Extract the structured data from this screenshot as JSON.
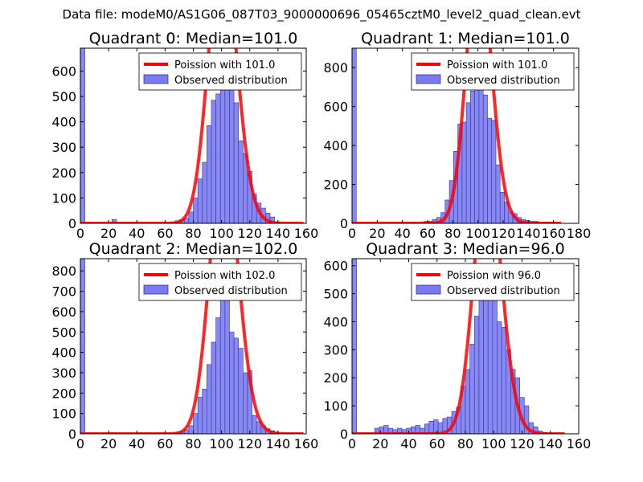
{
  "figure": {
    "suptitle": "Data file: modeM0/AS1G06_087T03_9000000696_05465cztM0_level2_quad_clean.evt",
    "fill_color": "#7b7bf0",
    "fill_edge": "#3535a8",
    "line_color": "#ff0000"
  },
  "chart_data": [
    {
      "type": "bar",
      "title": "Quadrant 0: Median=101.0",
      "xlim": [
        0,
        160
      ],
      "ylim": [
        0,
        690
      ],
      "xticks": [
        0,
        20,
        40,
        60,
        80,
        100,
        120,
        140,
        160
      ],
      "yticks": [
        0,
        100,
        200,
        300,
        400,
        500,
        600
      ],
      "legend": {
        "location": "top-right",
        "line_label": "Poission with 101.0",
        "bar_label": "Observed distribution"
      },
      "bin_width": 3.2,
      "bins": [
        {
          "x": 0,
          "y": 690
        },
        {
          "x": 22.4,
          "y": 15
        },
        {
          "x": 64,
          "y": 5
        },
        {
          "x": 67.2,
          "y": 10
        },
        {
          "x": 70.4,
          "y": 15
        },
        {
          "x": 73.6,
          "y": 20
        },
        {
          "x": 76.8,
          "y": 45
        },
        {
          "x": 80,
          "y": 100
        },
        {
          "x": 83.2,
          "y": 175
        },
        {
          "x": 86.4,
          "y": 240
        },
        {
          "x": 89.6,
          "y": 385
        },
        {
          "x": 92.8,
          "y": 485
        },
        {
          "x": 96,
          "y": 510
        },
        {
          "x": 99.2,
          "y": 665
        },
        {
          "x": 102.4,
          "y": 655
        },
        {
          "x": 105.6,
          "y": 550
        },
        {
          "x": 108.8,
          "y": 475
        },
        {
          "x": 112,
          "y": 325
        },
        {
          "x": 115.2,
          "y": 275
        },
        {
          "x": 118.4,
          "y": 205
        },
        {
          "x": 121.6,
          "y": 115
        },
        {
          "x": 124.8,
          "y": 80
        },
        {
          "x": 128,
          "y": 60
        },
        {
          "x": 131.2,
          "y": 40
        },
        {
          "x": 134.4,
          "y": 25
        },
        {
          "x": 137.6,
          "y": 5
        }
      ],
      "poisson_mean": 101.0,
      "poisson_scale": 27300,
      "poisson_xrange": [
        0,
        158
      ]
    },
    {
      "type": "bar",
      "title": "Quadrant 1: Median=101.0",
      "xlim": [
        0,
        180
      ],
      "ylim": [
        0,
        900
      ],
      "xticks": [
        0,
        20,
        40,
        60,
        80,
        100,
        120,
        140,
        160,
        180
      ],
      "yticks": [
        0,
        200,
        400,
        600,
        800
      ],
      "legend": {
        "location": "top-right",
        "line_label": "Poission with 101.0",
        "bar_label": "Observed distribution"
      },
      "bin_width": 3.36,
      "bins": [
        {
          "x": 0,
          "y": 900
        },
        {
          "x": 47,
          "y": 5
        },
        {
          "x": 57.1,
          "y": 10
        },
        {
          "x": 60.5,
          "y": 10
        },
        {
          "x": 63.8,
          "y": 20
        },
        {
          "x": 67.2,
          "y": 30
        },
        {
          "x": 70.6,
          "y": 55
        },
        {
          "x": 73.9,
          "y": 120
        },
        {
          "x": 77.3,
          "y": 220
        },
        {
          "x": 80.6,
          "y": 370
        },
        {
          "x": 84,
          "y": 510
        },
        {
          "x": 87.4,
          "y": 520
        },
        {
          "x": 90.7,
          "y": 620
        },
        {
          "x": 94.1,
          "y": 680
        },
        {
          "x": 97.4,
          "y": 820
        },
        {
          "x": 100.8,
          "y": 710
        },
        {
          "x": 104.2,
          "y": 660
        },
        {
          "x": 107.5,
          "y": 540
        },
        {
          "x": 110.9,
          "y": 530
        },
        {
          "x": 114.2,
          "y": 300
        },
        {
          "x": 117.6,
          "y": 160
        },
        {
          "x": 121,
          "y": 110
        },
        {
          "x": 124.3,
          "y": 60
        },
        {
          "x": 127.7,
          "y": 50
        },
        {
          "x": 131,
          "y": 30
        },
        {
          "x": 134.4,
          "y": 20
        },
        {
          "x": 137.8,
          "y": 15
        },
        {
          "x": 141.1,
          "y": 10
        },
        {
          "x": 144.5,
          "y": 10
        },
        {
          "x": 147.8,
          "y": 5
        },
        {
          "x": 151.2,
          "y": 5
        },
        {
          "x": 154.6,
          "y": 5
        },
        {
          "x": 157.9,
          "y": 5
        }
      ],
      "poisson_mean": 101.0,
      "poisson_scale": 34000,
      "poisson_xrange": [
        0,
        166
      ]
    },
    {
      "type": "bar",
      "title": "Quadrant 2: Median=102.0",
      "xlim": [
        0,
        160
      ],
      "ylim": [
        0,
        860
      ],
      "xticks": [
        0,
        20,
        40,
        60,
        80,
        100,
        120,
        140,
        160
      ],
      "yticks": [
        0,
        100,
        200,
        300,
        400,
        500,
        600,
        700,
        800
      ],
      "legend": {
        "location": "top-right",
        "line_label": "Poission with 102.0",
        "bar_label": "Observed distribution"
      },
      "bin_width": 3.2,
      "bins": [
        {
          "x": 0,
          "y": 860
        },
        {
          "x": 67.2,
          "y": 5
        },
        {
          "x": 70.4,
          "y": 10
        },
        {
          "x": 73.6,
          "y": 20
        },
        {
          "x": 76.8,
          "y": 40
        },
        {
          "x": 80,
          "y": 100
        },
        {
          "x": 83.2,
          "y": 180
        },
        {
          "x": 86.4,
          "y": 220
        },
        {
          "x": 89.6,
          "y": 340
        },
        {
          "x": 92.8,
          "y": 450
        },
        {
          "x": 96,
          "y": 570
        },
        {
          "x": 99.2,
          "y": 705
        },
        {
          "x": 102.4,
          "y": 780
        },
        {
          "x": 105.6,
          "y": 500
        },
        {
          "x": 108.8,
          "y": 470
        },
        {
          "x": 112,
          "y": 420
        },
        {
          "x": 115.2,
          "y": 300
        },
        {
          "x": 118.4,
          "y": 310
        },
        {
          "x": 121.6,
          "y": 90
        },
        {
          "x": 124.8,
          "y": 60
        },
        {
          "x": 128,
          "y": 40
        },
        {
          "x": 131.2,
          "y": 25
        },
        {
          "x": 134.4,
          "y": 15
        },
        {
          "x": 137.6,
          "y": 5
        }
      ],
      "poisson_mean": 102.0,
      "poisson_scale": 34000,
      "poisson_xrange": [
        0,
        158
      ]
    },
    {
      "type": "bar",
      "title": "Quadrant 3: Median=96.0",
      "xlim": [
        0,
        160
      ],
      "ylim": [
        0,
        625
      ],
      "xticks": [
        0,
        20,
        40,
        60,
        80,
        100,
        120,
        140,
        160
      ],
      "yticks": [
        0,
        100,
        200,
        300,
        400,
        500,
        600
      ],
      "legend": {
        "location": "top-right",
        "line_label": "Poission with 96.0",
        "bar_label": "Observed distribution"
      },
      "bin_width": 3.2,
      "bins": [
        {
          "x": 0,
          "y": 625
        },
        {
          "x": 16,
          "y": 20
        },
        {
          "x": 19.2,
          "y": 25
        },
        {
          "x": 22.4,
          "y": 30
        },
        {
          "x": 25.6,
          "y": 20
        },
        {
          "x": 28.8,
          "y": 15
        },
        {
          "x": 32,
          "y": 20
        },
        {
          "x": 35.2,
          "y": 15
        },
        {
          "x": 38.4,
          "y": 20
        },
        {
          "x": 41.6,
          "y": 25
        },
        {
          "x": 44.8,
          "y": 30
        },
        {
          "x": 48,
          "y": 20
        },
        {
          "x": 51.2,
          "y": 35
        },
        {
          "x": 54.4,
          "y": 45
        },
        {
          "x": 57.6,
          "y": 50
        },
        {
          "x": 60.8,
          "y": 40
        },
        {
          "x": 64,
          "y": 55
        },
        {
          "x": 67.2,
          "y": 60
        },
        {
          "x": 70.4,
          "y": 80
        },
        {
          "x": 73.6,
          "y": 95
        },
        {
          "x": 76.8,
          "y": 170
        },
        {
          "x": 80,
          "y": 230
        },
        {
          "x": 83.2,
          "y": 320
        },
        {
          "x": 86.4,
          "y": 420
        },
        {
          "x": 89.6,
          "y": 520
        },
        {
          "x": 92.8,
          "y": 580
        },
        {
          "x": 96,
          "y": 585
        },
        {
          "x": 99.2,
          "y": 500
        },
        {
          "x": 102.4,
          "y": 400
        },
        {
          "x": 105.6,
          "y": 380
        },
        {
          "x": 108.8,
          "y": 300
        },
        {
          "x": 112,
          "y": 230
        },
        {
          "x": 115.2,
          "y": 200
        },
        {
          "x": 118.4,
          "y": 130
        },
        {
          "x": 121.6,
          "y": 100
        },
        {
          "x": 124.8,
          "y": 40
        },
        {
          "x": 128,
          "y": 25
        },
        {
          "x": 131.2,
          "y": 10
        },
        {
          "x": 134.4,
          "y": 5
        }
      ],
      "poisson_mean": 96.0,
      "poisson_scale": 23000,
      "poisson_xrange": [
        0,
        150
      ]
    }
  ]
}
